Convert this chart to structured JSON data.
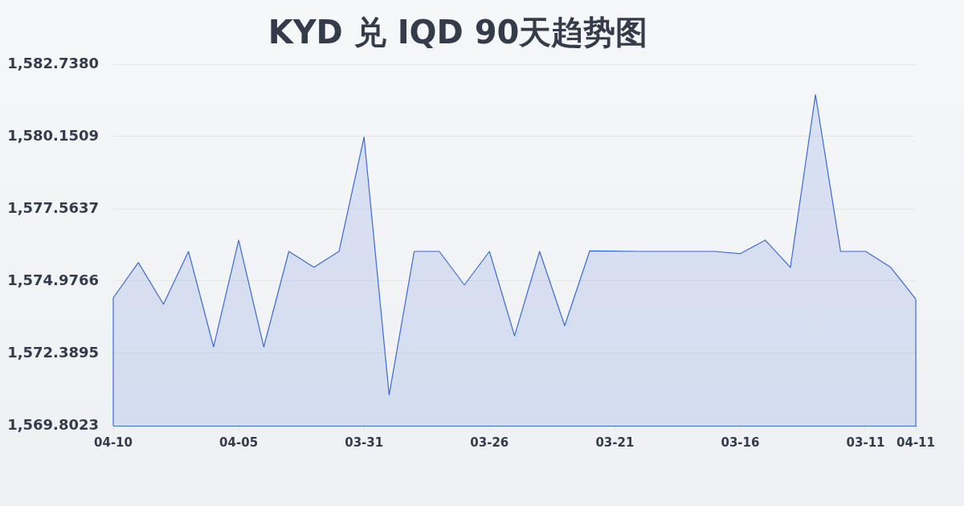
{
  "chart_data": {
    "type": "area",
    "title": "KYD 兑 IQD 90天趋势图",
    "categories": [
      "04-10",
      null,
      null,
      null,
      null,
      "04-05",
      null,
      null,
      null,
      null,
      "03-31",
      null,
      null,
      null,
      null,
      "03-26",
      null,
      null,
      null,
      null,
      "03-21",
      null,
      null,
      null,
      null,
      "03-16",
      null,
      null,
      null,
      null,
      "03-11",
      null,
      "04-11"
    ],
    "values": [
      1574.38,
      1575.64,
      1574.15,
      1576.04,
      1572.62,
      1576.44,
      1572.62,
      1576.04,
      1575.47,
      1576.04,
      1580.13,
      1570.9,
      1576.04,
      1576.04,
      1574.84,
      1576.04,
      1573.02,
      1576.04,
      1573.38,
      1576.06,
      1576.05,
      1576.04,
      1576.04,
      1576.04,
      1576.04,
      1575.96,
      1576.44,
      1575.47,
      1581.65,
      1576.04,
      1576.04,
      1575.47,
      1574.33
    ],
    "color": "#3a6bd4",
    "ylim": [
      1569.8023,
      1582.738
    ],
    "yticks": [
      {
        "value": 1569.8023,
        "label": "1,569.8023"
      },
      {
        "value": 1572.3895,
        "label": "1,572.3895"
      },
      {
        "value": 1574.9766,
        "label": "1,574.9766"
      },
      {
        "value": 1577.5637,
        "label": "1,577.5637"
      },
      {
        "value": 1580.1509,
        "label": "1,580.1509"
      },
      {
        "value": 1582.738,
        "label": "1,582.7380"
      }
    ],
    "grid": "y"
  }
}
